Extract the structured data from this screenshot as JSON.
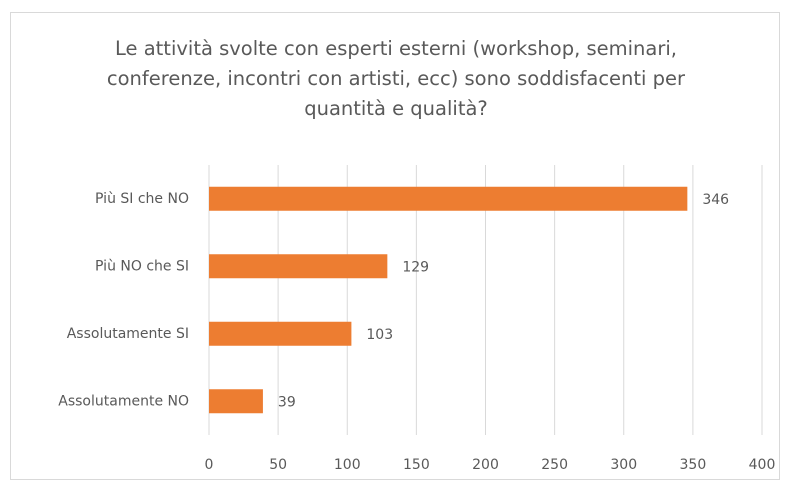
{
  "chart_data": {
    "type": "bar",
    "orientation": "horizontal",
    "title": "Le attività svolte con esperti esterni (workshop, seminari, conferenze, incontri con artisti, ecc) sono soddisfacenti per quantità e qualità?",
    "categories": [
      "Più SI che NO",
      "Più NO che SI",
      "Assolutamente SI",
      "Assolutamente NO"
    ],
    "values": [
      346,
      129,
      103,
      39
    ],
    "color": "#ed7d31",
    "xlim": [
      0,
      400
    ],
    "xticks": [
      0,
      50,
      100,
      150,
      200,
      250,
      300,
      350,
      400
    ],
    "grid": true
  }
}
